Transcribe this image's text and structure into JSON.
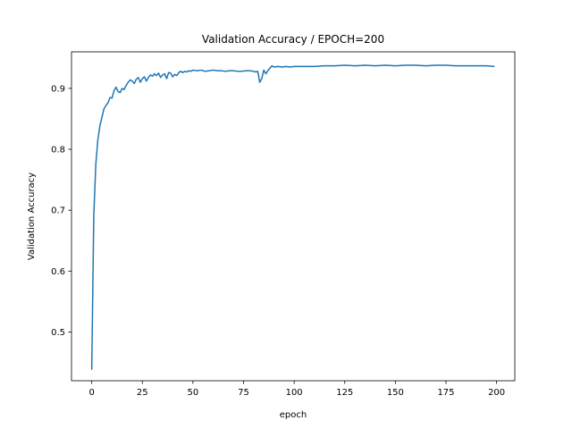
{
  "chart_data": {
    "type": "line",
    "title": "Validation Accuracy / EPOCH=200",
    "xlabel": "epoch",
    "ylabel": "Validation Accuracy",
    "xlim": [
      -10,
      209
    ],
    "ylim": [
      0.42,
      0.96
    ],
    "xticks": [
      0,
      25,
      50,
      75,
      100,
      125,
      150,
      175,
      200
    ],
    "yticks": [
      0.5,
      0.6,
      0.7,
      0.8,
      0.9
    ],
    "xtick_labels": [
      "0",
      "25",
      "50",
      "75",
      "100",
      "125",
      "150",
      "175",
      "200"
    ],
    "ytick_labels": [
      "0.5",
      "0.6",
      "0.7",
      "0.8",
      "0.9"
    ],
    "grid": false,
    "series": [
      {
        "color": "#1f77b4",
        "x": [
          0,
          1,
          2,
          3,
          4,
          5,
          6,
          7,
          8,
          9,
          10,
          11,
          12,
          13,
          14,
          15,
          16,
          17,
          18,
          19,
          20,
          21,
          22,
          23,
          24,
          25,
          26,
          27,
          28,
          29,
          30,
          31,
          32,
          33,
          34,
          35,
          36,
          37,
          38,
          39,
          40,
          41,
          42,
          43,
          44,
          45,
          46,
          47,
          48,
          49,
          50,
          52,
          54,
          56,
          58,
          60,
          62,
          64,
          66,
          68,
          70,
          72,
          74,
          76,
          78,
          80,
          81,
          82,
          83,
          84,
          85,
          86,
          87,
          88,
          89,
          90,
          92,
          94,
          96,
          98,
          100,
          105,
          110,
          115,
          120,
          125,
          130,
          135,
          140,
          145,
          150,
          155,
          160,
          165,
          170,
          175,
          180,
          185,
          190,
          195,
          199
        ],
        "y": [
          0.438,
          0.69,
          0.775,
          0.815,
          0.838,
          0.852,
          0.866,
          0.872,
          0.876,
          0.885,
          0.884,
          0.896,
          0.902,
          0.895,
          0.893,
          0.9,
          0.898,
          0.905,
          0.91,
          0.914,
          0.912,
          0.908,
          0.915,
          0.918,
          0.91,
          0.916,
          0.919,
          0.912,
          0.918,
          0.922,
          0.92,
          0.924,
          0.921,
          0.925,
          0.918,
          0.922,
          0.924,
          0.916,
          0.926,
          0.925,
          0.919,
          0.923,
          0.921,
          0.926,
          0.928,
          0.926,
          0.928,
          0.927,
          0.929,
          0.928,
          0.93,
          0.929,
          0.93,
          0.928,
          0.929,
          0.93,
          0.929,
          0.929,
          0.928,
          0.929,
          0.929,
          0.928,
          0.928,
          0.929,
          0.929,
          0.928,
          0.927,
          0.928,
          0.91,
          0.916,
          0.93,
          0.924,
          0.929,
          0.933,
          0.937,
          0.935,
          0.936,
          0.935,
          0.936,
          0.935,
          0.936,
          0.936,
          0.936,
          0.937,
          0.937,
          0.938,
          0.937,
          0.938,
          0.937,
          0.938,
          0.937,
          0.938,
          0.938,
          0.937,
          0.938,
          0.938,
          0.937,
          0.937,
          0.937,
          0.937,
          0.936
        ]
      }
    ]
  }
}
